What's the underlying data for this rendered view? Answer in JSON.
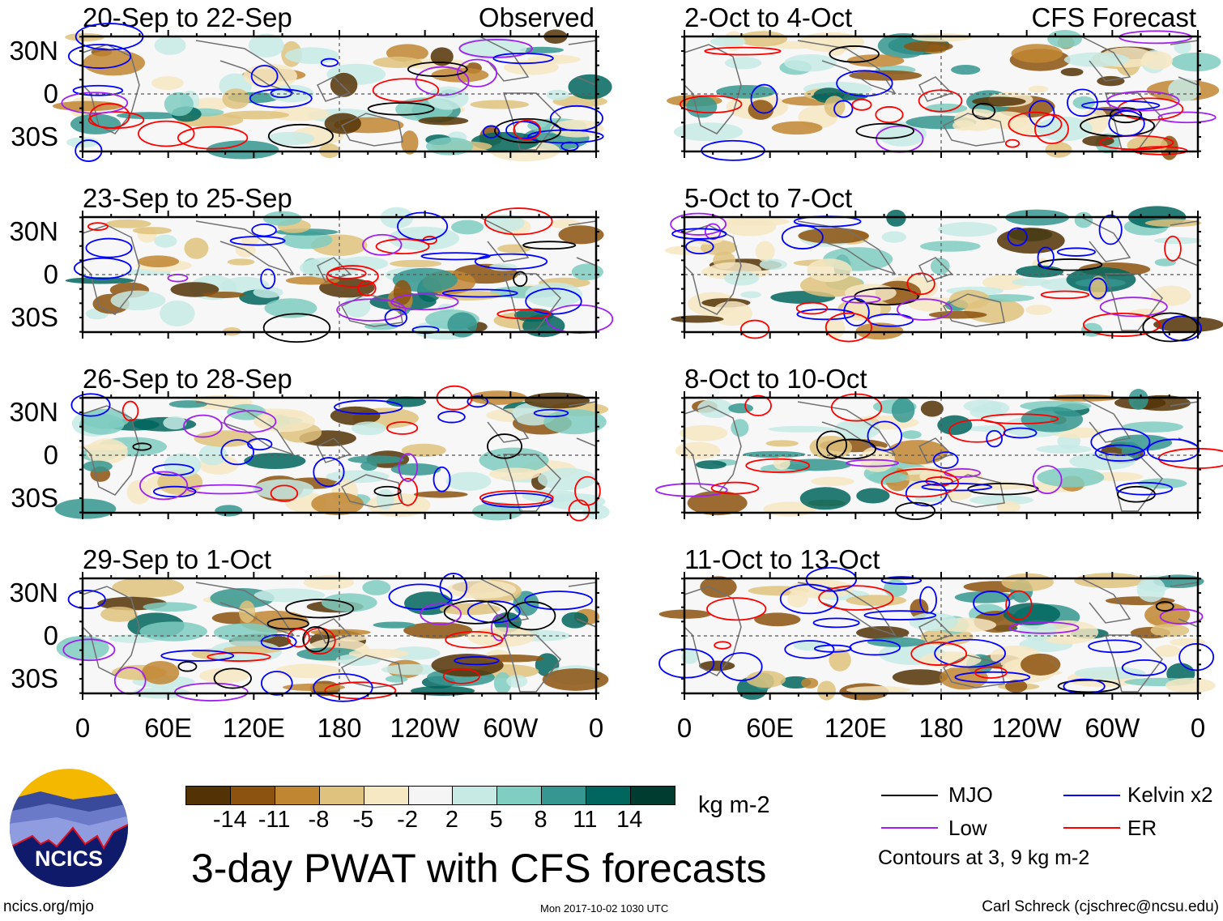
{
  "panels": {
    "left": [
      {
        "title": "20-Sep to 22-Sep",
        "label": "Observed"
      },
      {
        "title": "23-Sep to 25-Sep"
      },
      {
        "title": "26-Sep to 28-Sep"
      },
      {
        "title": "29-Sep to 1-Oct"
      }
    ],
    "right": [
      {
        "title": "2-Oct to 4-Oct",
        "label": "CFS Forecast"
      },
      {
        "title": "5-Oct to 7-Oct"
      },
      {
        "title": "8-Oct to 10-Oct"
      },
      {
        "title": "11-Oct to 13-Oct"
      }
    ]
  },
  "lat_labels": [
    "30N",
    "0",
    "30S"
  ],
  "lon_labels": [
    "0",
    "60E",
    "120E",
    "180",
    "120W",
    "60W",
    "0"
  ],
  "colorbar": {
    "colors": [
      "#533206",
      "#8c520f",
      "#c18632",
      "#dfc27d",
      "#f6e8c3",
      "#f5f5f5",
      "#c7eae5",
      "#80cdc1",
      "#35978f",
      "#01665e",
      "#003c30"
    ],
    "labels": [
      "-14",
      "-11",
      "-8",
      "-5",
      "-2",
      "2",
      "5",
      "8",
      "11",
      "14"
    ],
    "units": "kg m-2"
  },
  "legend": {
    "items": [
      {
        "label": "MJO",
        "color": "#000000"
      },
      {
        "label": "Kelvin x2",
        "color": "#0000ff"
      },
      {
        "label": "Low",
        "color": "#a020f0"
      },
      {
        "label": "ER",
        "color": "#ff0000"
      }
    ],
    "note": "Contours at 3, 9 kg m-2"
  },
  "title": "3-day PWAT with CFS forecasts",
  "logo_text": "NCICS",
  "footer": {
    "url": "ncics.org/mjo",
    "timestamp": "Mon 2017-10-02 1030 UTC",
    "credit": "Carl Schreck (cjschrec@ncsu.edu)"
  }
}
